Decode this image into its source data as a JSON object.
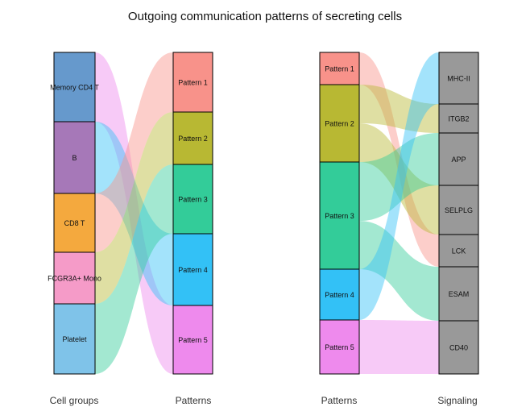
{
  "title": "Outgoing communication patterns of secreting cells",
  "left_panel": {
    "axis_labels": [
      "Cell groups",
      "Patterns"
    ],
    "cell_groups": [
      {
        "label": "Memory CD4 T",
        "color": "#6699CC"
      },
      {
        "label": "B",
        "color": "#A678B8"
      },
      {
        "label": "CD8 T",
        "color": "#F4A93E"
      },
      {
        "label": "FCGR3A+ Mono",
        "color": "#F59BC8"
      },
      {
        "label": "Platelet",
        "color": "#7FC3E9"
      }
    ],
    "patterns": [
      {
        "label": "Pattern 1",
        "color": "#F8928A"
      },
      {
        "label": "Pattern 2",
        "color": "#B8B833"
      },
      {
        "label": "Pattern 3",
        "color": "#33CC99"
      },
      {
        "label": "Pattern 4",
        "color": "#33C1F6"
      },
      {
        "label": "Pattern 5",
        "color": "#EE8AED"
      }
    ]
  },
  "right_panel": {
    "axis_labels": [
      "Patterns",
      "Signaling"
    ],
    "patterns": [
      {
        "label": "Pattern 1",
        "color": "#F8928A"
      },
      {
        "label": "Pattern 2",
        "color": "#B8B833"
      },
      {
        "label": "Pattern 3",
        "color": "#33CC99"
      },
      {
        "label": "Pattern 4",
        "color": "#33C1F6"
      },
      {
        "label": "Pattern 5",
        "color": "#EE8AED"
      }
    ],
    "signaling": [
      {
        "label": "MHC-II",
        "color": "#999999"
      },
      {
        "label": "ITGB2",
        "color": "#999999"
      },
      {
        "label": "APP",
        "color": "#999999"
      },
      {
        "label": "SELPLG",
        "color": "#999999"
      },
      {
        "label": "LCK",
        "color": "#999999"
      },
      {
        "label": "ESAM",
        "color": "#999999"
      },
      {
        "label": "CD40",
        "color": "#999999"
      }
    ]
  }
}
